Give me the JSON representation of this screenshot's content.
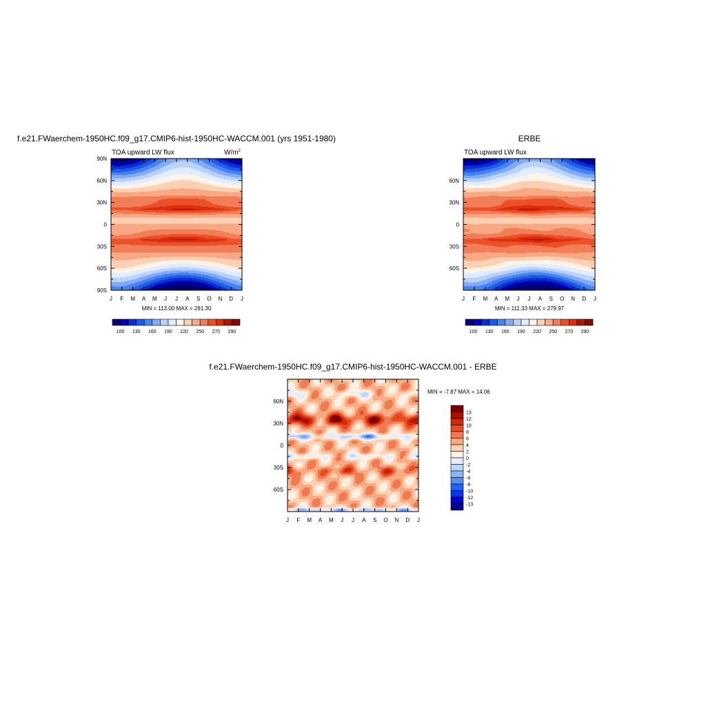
{
  "panels": {
    "model": {
      "title": "f.e21.FWaerchem-1950HC.f09_g17.CMIP6-hist-1950HC-WACCM.001 (yrs 1951-1980)",
      "variable": "TOA upward LW flux",
      "units": "W/m",
      "units_sup": "2",
      "minmax": "MIN = 113.00 MAX = 281.30"
    },
    "obs": {
      "title": "ERBE",
      "variable": "TOA upward LW flux",
      "minmax": "MIN = 111.33 MAX = 279.97"
    },
    "diff": {
      "title": "f.e21.FWaerchem-1950HC.f09_g17.CMIP6-hist-1950HC-WACCM.001 - ERBE",
      "minmax": "MIN =  -7.87 MAX =  14.06"
    }
  },
  "chart_data": [
    {
      "type": "heatmap",
      "name": "model",
      "title": "f.e21.FWaerchem-1950HC.f09_g17.CMIP6-hist-1950HC-WACCM.001 (yrs 1951-1980)",
      "subtitle": "TOA upward LW flux",
      "units": "W/m2",
      "x": [
        "J",
        "F",
        "M",
        "A",
        "M",
        "J",
        "J",
        "A",
        "S",
        "O",
        "N",
        "D",
        "J"
      ],
      "ylabels": [
        "90N",
        "60N",
        "30N",
        "0",
        "30S",
        "60S",
        "90S"
      ],
      "ylim": [
        -90,
        90
      ],
      "min": 113.0,
      "max": 281.3,
      "colorbar_labels": [
        "100",
        "130",
        "160",
        "190",
        "220",
        "250",
        "270",
        "290"
      ]
    },
    {
      "type": "heatmap",
      "name": "obs",
      "title": "ERBE",
      "subtitle": "TOA upward LW flux",
      "x": [
        "J",
        "F",
        "M",
        "A",
        "M",
        "J",
        "J",
        "A",
        "S",
        "O",
        "N",
        "D",
        "J"
      ],
      "ylabels": [
        "60N",
        "30N",
        "0",
        "30S",
        "60S"
      ],
      "ylim": [
        -90,
        90
      ],
      "min": 111.33,
      "max": 279.97,
      "colorbar_labels": [
        "100",
        "130",
        "160",
        "190",
        "220",
        "250",
        "270",
        "290"
      ]
    },
    {
      "type": "heatmap",
      "name": "difference",
      "title": "f.e21.FWaerchem-1950HC.f09_g17.CMIP6-hist-1950HC-WACCM.001 - ERBE",
      "x": [
        "J",
        "F",
        "M",
        "A",
        "M",
        "J",
        "J",
        "A",
        "S",
        "O",
        "N",
        "D",
        "J"
      ],
      "ylabels": [
        "60N",
        "30N",
        "0",
        "30S",
        "60S"
      ],
      "ylim": [
        -90,
        90
      ],
      "min": -7.87,
      "max": 14.06,
      "colorbar_labels": [
        "13",
        "12",
        "10",
        "8",
        "6",
        "4",
        "2",
        "0",
        "-2",
        "-4",
        "-6",
        "-8",
        "-10",
        "-12",
        "-13"
      ]
    }
  ],
  "colors": {
    "abs_palette": [
      "#00007a",
      "#0000b8",
      "#0a2ed0",
      "#1e5ae6",
      "#4682f0",
      "#82aaf5",
      "#bad2fa",
      "#e0ecff",
      "#fff2e6",
      "#fcd0b4",
      "#f8a882",
      "#f27e58",
      "#ec5028",
      "#dc2d0c",
      "#b41400",
      "#820800"
    ],
    "diff_palette": [
      "#00009a",
      "#0000d2",
      "#0a32e6",
      "#1e64f0",
      "#5a8cf5",
      "#8cb4f8",
      "#bed4fa",
      "#e4eefc",
      "#fff0e4",
      "#fcd2b4",
      "#f8aa82",
      "#f07a52",
      "#e84c24",
      "#d2280a",
      "#aa1000",
      "#7a0000"
    ]
  }
}
